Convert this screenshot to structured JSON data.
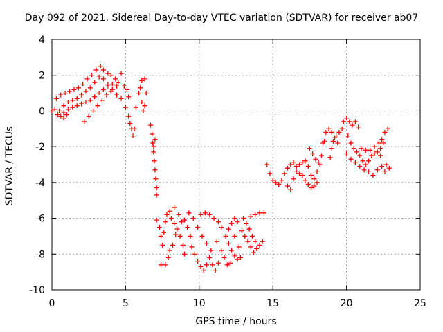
{
  "chart_data": {
    "type": "scatter",
    "title": "Day 092 of 2021, Sidereal Day-to-day VTEC variation (SDTVAR) for receiver ab07",
    "xlabel": "GPS time / hours",
    "ylabel": "SDTVAR / TECUs",
    "xlim": [
      0,
      25
    ],
    "ylim": [
      -10,
      4
    ],
    "xticks": [
      "0",
      "5",
      "10",
      "15",
      "20",
      "25"
    ],
    "yticks": [
      "4",
      "2",
      "0",
      "-2",
      "-4",
      "-6",
      "-8",
      "-10"
    ],
    "grid": true,
    "marker": "plus",
    "color": "#ff0000",
    "series": [
      {
        "points": [
          [
            0.0,
            0.0
          ],
          [
            0.2,
            0.1
          ],
          [
            0.4,
            -0.2
          ],
          [
            0.6,
            -0.3
          ],
          [
            0.8,
            -0.4
          ],
          [
            1.0,
            -0.2
          ],
          [
            0.3,
            0.7
          ],
          [
            0.6,
            0.9
          ],
          [
            0.9,
            1.0
          ],
          [
            1.2,
            1.1
          ],
          [
            1.5,
            1.2
          ],
          [
            1.8,
            1.3
          ],
          [
            2.1,
            1.5
          ],
          [
            2.4,
            1.8
          ],
          [
            2.7,
            2.0
          ],
          [
            3.0,
            2.3
          ],
          [
            3.3,
            2.5
          ],
          [
            3.5,
            2.3
          ],
          [
            3.8,
            2.1
          ],
          [
            4.0,
            2.0
          ],
          [
            4.3,
            1.8
          ],
          [
            4.5,
            1.6
          ],
          [
            4.7,
            2.1
          ],
          [
            4.9,
            1.4
          ],
          [
            5.1,
            1.2
          ],
          [
            5.2,
            0.8
          ],
          [
            0.8,
            0.3
          ],
          [
            1.1,
            0.5
          ],
          [
            1.4,
            0.6
          ],
          [
            1.7,
            0.7
          ],
          [
            2.0,
            0.9
          ],
          [
            2.3,
            1.1
          ],
          [
            2.6,
            1.3
          ],
          [
            2.9,
            1.6
          ],
          [
            3.2,
            1.9
          ],
          [
            3.5,
            1.8
          ],
          [
            3.8,
            1.5
          ],
          [
            4.1,
            1.2
          ],
          [
            4.4,
            0.9
          ],
          [
            4.7,
            0.7
          ],
          [
            0.5,
            0.0
          ],
          [
            0.8,
            -0.1
          ],
          [
            1.1,
            0.1
          ],
          [
            1.4,
            0.2
          ],
          [
            1.7,
            0.3
          ],
          [
            2.0,
            0.4
          ],
          [
            2.3,
            0.5
          ],
          [
            2.6,
            0.6
          ],
          [
            2.9,
            0.8
          ],
          [
            3.2,
            1.0
          ],
          [
            3.5,
            1.2
          ],
          [
            3.8,
            1.4
          ],
          [
            4.1,
            1.5
          ],
          [
            4.4,
            1.4
          ],
          [
            2.2,
            -0.6
          ],
          [
            2.5,
            -0.3
          ],
          [
            2.8,
            0.0
          ],
          [
            3.1,
            0.3
          ],
          [
            3.4,
            0.6
          ],
          [
            3.7,
            0.9
          ],
          [
            4.0,
            1.1
          ],
          [
            5.0,
            0.2
          ],
          [
            5.2,
            -0.3
          ],
          [
            5.3,
            -0.7
          ],
          [
            5.4,
            -1.0
          ],
          [
            5.5,
            -1.4
          ],
          [
            5.6,
            -1.0
          ],
          [
            5.7,
            0.2
          ],
          [
            5.9,
            1.0
          ],
          [
            6.0,
            1.3
          ],
          [
            6.1,
            0.5
          ],
          [
            6.2,
            0.0
          ],
          [
            6.3,
            0.3
          ],
          [
            6.4,
            1.0
          ],
          [
            6.1,
            1.7
          ],
          [
            6.3,
            1.8
          ],
          [
            6.7,
            -0.8
          ],
          [
            6.8,
            -1.3
          ],
          [
            6.85,
            -1.8
          ],
          [
            6.9,
            -2.3
          ],
          [
            6.95,
            -2.8
          ],
          [
            7.0,
            -3.3
          ],
          [
            7.05,
            -3.8
          ],
          [
            7.1,
            -4.3
          ],
          [
            7.1,
            -4.7
          ],
          [
            6.9,
            -2.0
          ],
          [
            7.0,
            -1.6
          ],
          [
            7.1,
            -6.1
          ],
          [
            7.3,
            -6.5
          ],
          [
            7.4,
            -7.0
          ],
          [
            7.5,
            -7.5
          ],
          [
            7.6,
            -6.8
          ],
          [
            7.7,
            -6.2
          ],
          [
            7.4,
            -8.6
          ],
          [
            7.7,
            -8.6
          ],
          [
            7.9,
            -8.2
          ],
          [
            8.0,
            -7.8
          ],
          [
            8.2,
            -7.5
          ],
          [
            8.4,
            -6.9
          ],
          [
            8.1,
            -6.0
          ],
          [
            8.3,
            -6.3
          ],
          [
            8.5,
            -6.6
          ],
          [
            8.7,
            -7.0
          ],
          [
            8.9,
            -7.5
          ],
          [
            9.0,
            -8.0
          ],
          [
            7.8,
            -5.8
          ],
          [
            8.0,
            -5.6
          ],
          [
            8.3,
            -5.4
          ],
          [
            8.6,
            -5.8
          ],
          [
            8.8,
            -6.2
          ],
          [
            9.0,
            -6.1
          ],
          [
            9.2,
            -6.5
          ],
          [
            9.4,
            -7.0
          ],
          [
            9.5,
            -7.6
          ],
          [
            9.7,
            -8.0
          ],
          [
            9.9,
            -8.4
          ],
          [
            10.1,
            -8.7
          ],
          [
            10.3,
            -8.9
          ],
          [
            10.5,
            -8.6
          ],
          [
            10.7,
            -8.2
          ],
          [
            10.9,
            -8.6
          ],
          [
            11.1,
            -8.9
          ],
          [
            11.3,
            -8.5
          ],
          [
            9.3,
            -5.7
          ],
          [
            9.6,
            -6.0
          ],
          [
            9.9,
            -6.5
          ],
          [
            10.2,
            -7.0
          ],
          [
            10.5,
            -7.4
          ],
          [
            10.8,
            -7.8
          ],
          [
            10.1,
            -5.8
          ],
          [
            10.4,
            -5.7
          ],
          [
            10.7,
            -5.8
          ],
          [
            11.0,
            -6.0
          ],
          [
            11.3,
            -6.2
          ],
          [
            11.5,
            -6.5
          ],
          [
            11.8,
            -7.0
          ],
          [
            12.0,
            -7.4
          ],
          [
            12.2,
            -7.8
          ],
          [
            12.4,
            -8.1
          ],
          [
            12.6,
            -8.3
          ],
          [
            12.8,
            -8.2
          ],
          [
            11.2,
            -7.3
          ],
          [
            11.5,
            -7.8
          ],
          [
            11.7,
            -8.2
          ],
          [
            11.9,
            -8.6
          ],
          [
            12.1,
            -8.5
          ],
          [
            12.0,
            -6.6
          ],
          [
            12.2,
            -6.3
          ],
          [
            12.4,
            -6.0
          ],
          [
            12.6,
            -6.2
          ],
          [
            12.9,
            -6.7
          ],
          [
            13.1,
            -7.0
          ],
          [
            13.3,
            -7.3
          ],
          [
            13.5,
            -7.6
          ],
          [
            13.7,
            -7.9
          ],
          [
            13.9,
            -7.7
          ],
          [
            14.1,
            -7.5
          ],
          [
            14.3,
            -7.3
          ],
          [
            13.0,
            -6.0
          ],
          [
            13.2,
            -6.3
          ],
          [
            13.4,
            -6.6
          ],
          [
            13.6,
            -7.0
          ],
          [
            13.8,
            -7.3
          ],
          [
            13.5,
            -5.9
          ],
          [
            13.8,
            -5.8
          ],
          [
            14.1,
            -5.7
          ],
          [
            14.4,
            -5.7
          ],
          [
            12.4,
            -7.0
          ],
          [
            12.7,
            -7.6
          ],
          [
            14.6,
            -3.0
          ],
          [
            14.8,
            -3.5
          ],
          [
            15.0,
            -3.9
          ],
          [
            15.2,
            -4.0
          ],
          [
            15.4,
            -4.1
          ],
          [
            15.6,
            -3.9
          ],
          [
            15.8,
            -3.5
          ],
          [
            16.0,
            -3.2
          ],
          [
            16.2,
            -3.0
          ],
          [
            16.4,
            -2.9
          ],
          [
            16.6,
            -3.1
          ],
          [
            16.8,
            -3.5
          ],
          [
            16.0,
            -4.2
          ],
          [
            16.2,
            -4.4
          ],
          [
            16.4,
            -3.8
          ],
          [
            16.6,
            -3.4
          ],
          [
            16.8,
            -3.0
          ],
          [
            17.0,
            -2.9
          ],
          [
            17.0,
            -3.6
          ],
          [
            17.2,
            -3.9
          ],
          [
            17.4,
            -4.1
          ],
          [
            17.6,
            -4.3
          ],
          [
            17.8,
            -4.2
          ],
          [
            18.0,
            -4.0
          ],
          [
            17.2,
            -2.8
          ],
          [
            17.4,
            -3.1
          ],
          [
            17.6,
            -3.6
          ],
          [
            17.8,
            -3.8
          ],
          [
            18.0,
            -3.4
          ],
          [
            18.2,
            -3.0
          ],
          [
            17.5,
            -2.1
          ],
          [
            17.7,
            -2.4
          ],
          [
            17.9,
            -2.7
          ],
          [
            18.1,
            -2.9
          ],
          [
            18.3,
            -2.5
          ],
          [
            18.4,
            -1.8
          ],
          [
            18.5,
            -1.7
          ],
          [
            18.6,
            -1.2
          ],
          [
            18.8,
            -1.0
          ],
          [
            19.0,
            -1.2
          ],
          [
            19.2,
            -1.5
          ],
          [
            19.4,
            -1.8
          ],
          [
            18.9,
            -2.6
          ],
          [
            19.0,
            -2.1
          ],
          [
            19.1,
            -1.7
          ],
          [
            19.3,
            -1.4
          ],
          [
            19.5,
            -1.2
          ],
          [
            19.7,
            -1.0
          ],
          [
            19.8,
            -0.6
          ],
          [
            20.0,
            -0.4
          ],
          [
            20.2,
            -0.6
          ],
          [
            20.4,
            -0.8
          ],
          [
            20.6,
            -0.6
          ],
          [
            20.8,
            -0.9
          ],
          [
            20.1,
            -1.4
          ],
          [
            20.3,
            -1.8
          ],
          [
            20.5,
            -2.1
          ],
          [
            20.7,
            -2.3
          ],
          [
            20.9,
            -2.5
          ],
          [
            21.1,
            -2.8
          ],
          [
            21.3,
            -3.0
          ],
          [
            21.5,
            -2.8
          ],
          [
            21.7,
            -2.5
          ],
          [
            21.9,
            -2.4
          ],
          [
            22.1,
            -2.3
          ],
          [
            22.3,
            -2.1
          ],
          [
            20.0,
            -2.4
          ],
          [
            20.3,
            -2.7
          ],
          [
            20.6,
            -2.9
          ],
          [
            20.9,
            -3.1
          ],
          [
            21.2,
            -3.3
          ],
          [
            21.5,
            -3.4
          ],
          [
            21.0,
            -2.1
          ],
          [
            21.3,
            -2.2
          ],
          [
            21.6,
            -2.2
          ],
          [
            21.9,
            -2.0
          ],
          [
            22.2,
            -1.8
          ],
          [
            22.4,
            -1.6
          ],
          [
            22.6,
            -1.2
          ],
          [
            22.8,
            -1.0
          ],
          [
            22.5,
            -1.8
          ],
          [
            22.3,
            -2.5
          ],
          [
            21.8,
            -3.6
          ],
          [
            22.1,
            -3.3
          ],
          [
            22.4,
            -3.1
          ],
          [
            22.7,
            -3.0
          ],
          [
            22.9,
            -3.2
          ],
          [
            22.6,
            -3.4
          ]
        ]
      }
    ]
  }
}
